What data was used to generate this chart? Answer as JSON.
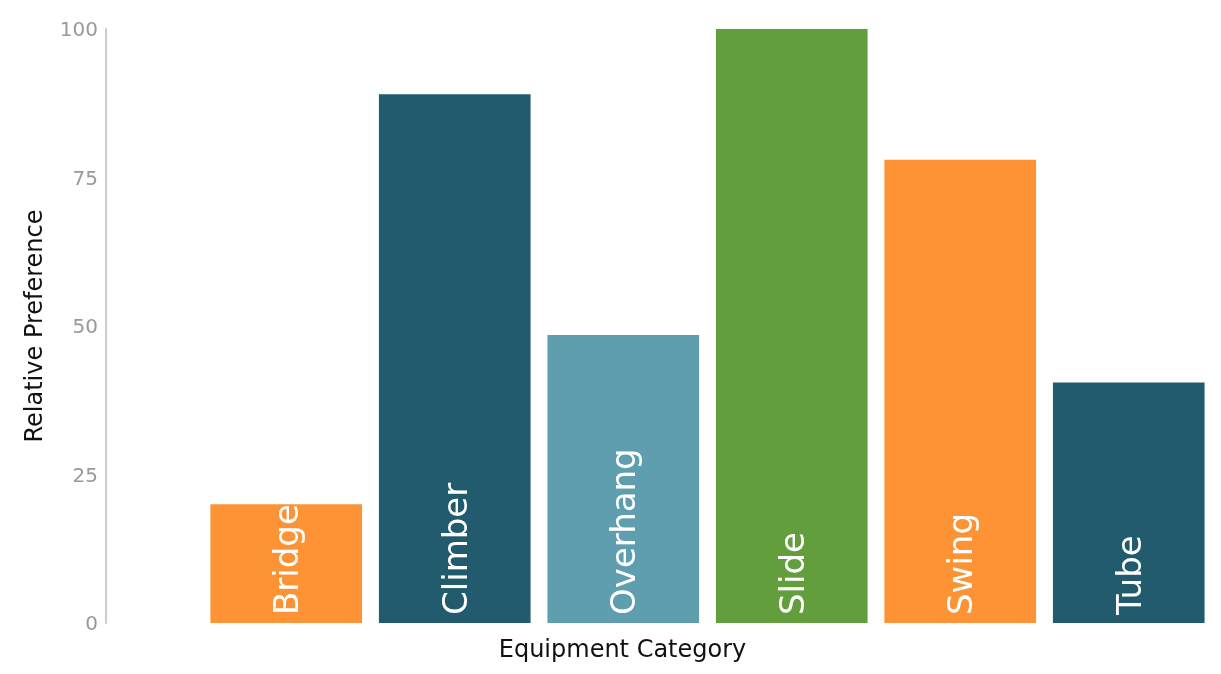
{
  "chart_data": {
    "type": "bar",
    "xlabel": "Equipment Category",
    "ylabel": "Relative Preference",
    "categories": [
      "Bridge",
      "Climber",
      "Overhang",
      "Slide",
      "Swing",
      "Tube"
    ],
    "values": [
      20,
      89,
      48.5,
      100,
      78,
      40.5
    ],
    "colors": [
      "#fd9335",
      "#215b6d",
      "#5e9eaf",
      "#639e3c",
      "#fd9335",
      "#215b6d"
    ],
    "ylim": [
      0,
      100
    ],
    "yticks": [
      0,
      25,
      50,
      75,
      100
    ],
    "grid": false
  }
}
